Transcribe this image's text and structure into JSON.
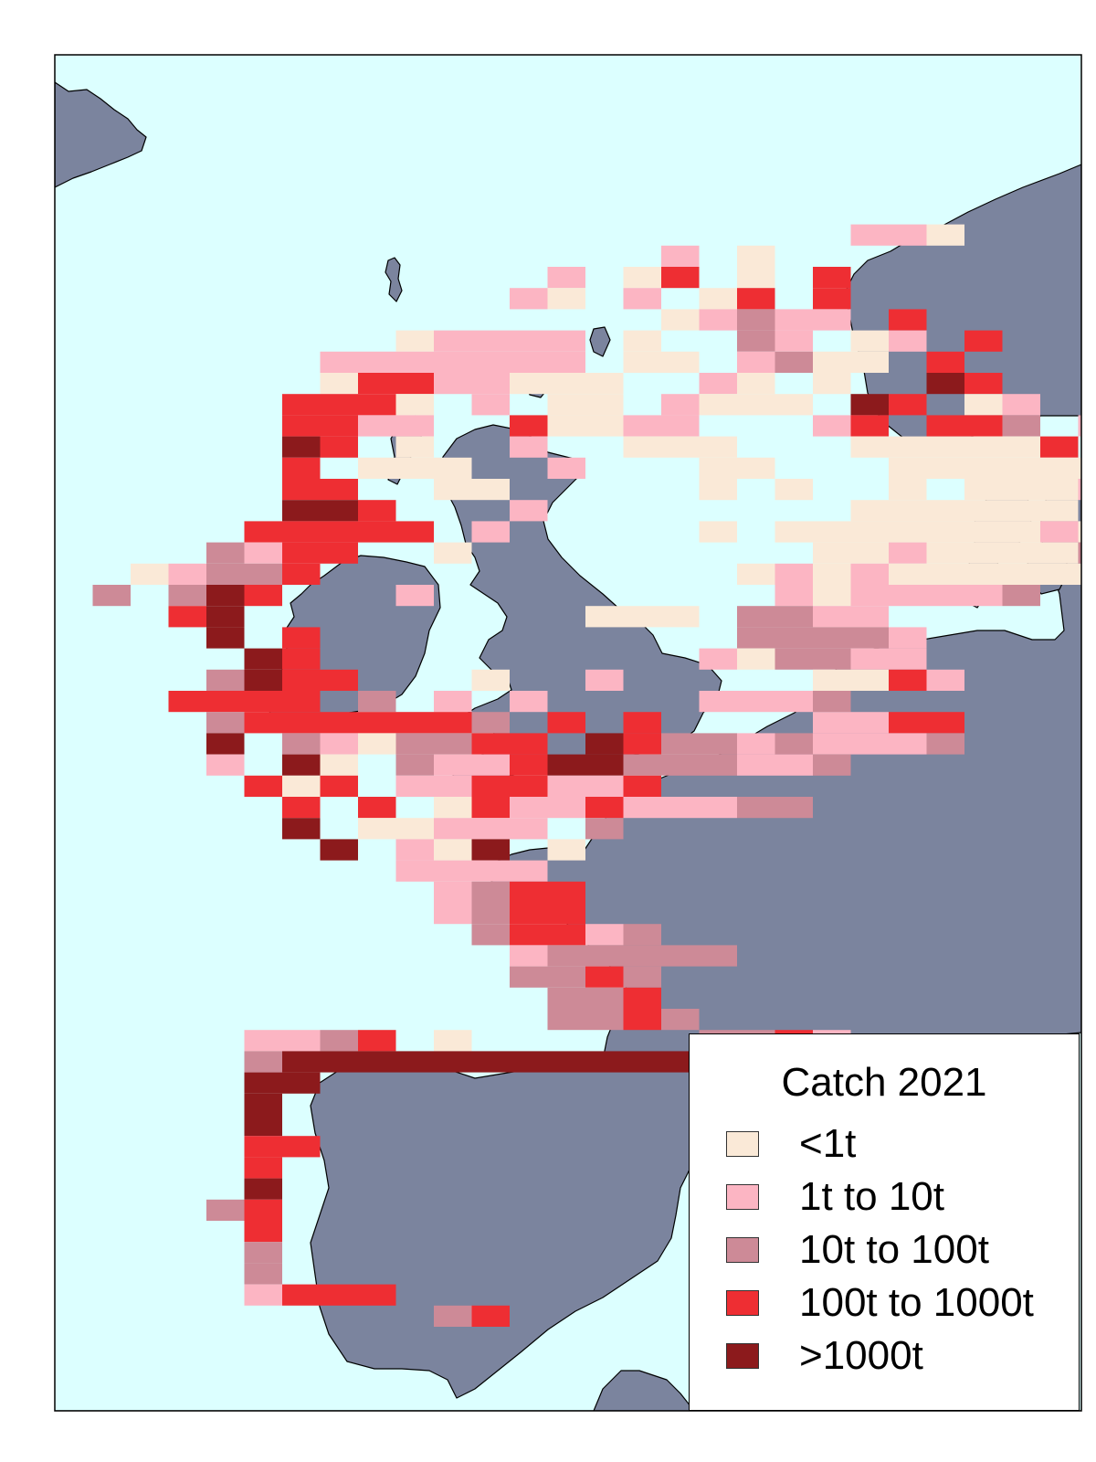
{
  "colors": {
    "sea": "#dcffff",
    "land": "#7b849e",
    "coast": "#000000"
  },
  "legend": {
    "title": "Catch 2021",
    "items": [
      {
        "key": "c1",
        "label": "<1t",
        "color": "#fae9d7"
      },
      {
        "key": "c2",
        "label": "1t to 10t",
        "color": "#fcb5c3"
      },
      {
        "key": "c3",
        "label": "10t to 100t",
        "color": "#cd8a97"
      },
      {
        "key": "c4",
        "label": "100t to 1000t",
        "color": "#ee2e33"
      },
      {
        "key": "c5",
        "label": ">1000t",
        "color": "#8c1a1c"
      }
    ]
  }
}
